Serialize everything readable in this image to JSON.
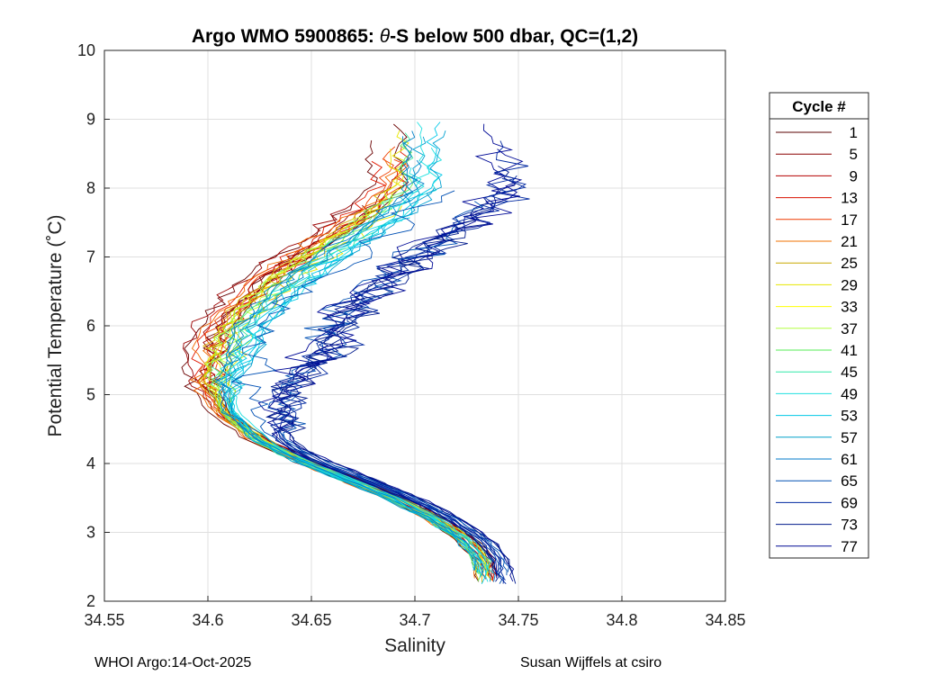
{
  "chart_data": {
    "type": "line",
    "title_prefix": "Argo WMO 5900865: ",
    "title_theta": "θ",
    "title_suffix": "-S below 500 dbar,  QC=(1,2)",
    "xlabel": "Salinity",
    "ylabel": "Potential Temperature (˚C)",
    "xlim": [
      34.55,
      34.85
    ],
    "ylim": [
      2,
      10
    ],
    "xticks": [
      "34.55",
      "34.6",
      "34.65",
      "34.7",
      "34.75",
      "34.8",
      "34.85"
    ],
    "yticks": [
      "2",
      "3",
      "4",
      "5",
      "6",
      "7",
      "8",
      "9",
      "10"
    ],
    "grid": true,
    "legend": {
      "title": "Cycle #",
      "placement": "outside-right",
      "entries": [
        {
          "label": "1",
          "color": "#5a0000"
        },
        {
          "label": "5",
          "color": "#8a0000"
        },
        {
          "label": "9",
          "color": "#b40000"
        },
        {
          "label": "13",
          "color": "#d81000"
        },
        {
          "label": "17",
          "color": "#ef3a00"
        },
        {
          "label": "21",
          "color": "#f07000"
        },
        {
          "label": "25",
          "color": "#c8a800"
        },
        {
          "label": "29",
          "color": "#e6e600"
        },
        {
          "label": "33",
          "color": "#ffff00"
        },
        {
          "label": "37",
          "color": "#b4ff40"
        },
        {
          "label": "41",
          "color": "#55ee55"
        },
        {
          "label": "45",
          "color": "#30e8a8"
        },
        {
          "label": "49",
          "color": "#20e0e0"
        },
        {
          "label": "53",
          "color": "#00c8e6"
        },
        {
          "label": "57",
          "color": "#00a0c8"
        },
        {
          "label": "61",
          "color": "#0078c8"
        },
        {
          "label": "65",
          "color": "#0050b4"
        },
        {
          "label": "69",
          "color": "#0028a0"
        },
        {
          "label": "73",
          "color": "#001a8c"
        },
        {
          "label": "77",
          "color": "#000a96"
        }
      ]
    },
    "mean_profile": [
      [
        34.735,
        2.3
      ],
      [
        34.733,
        2.6
      ],
      [
        34.725,
        2.9
      ],
      [
        34.71,
        3.2
      ],
      [
        34.69,
        3.5
      ],
      [
        34.67,
        3.75
      ],
      [
        34.645,
        4.05
      ],
      [
        34.625,
        4.35
      ],
      [
        34.61,
        4.75
      ],
      [
        34.607,
        5.2
      ],
      [
        34.612,
        5.6
      ],
      [
        34.617,
        6.0
      ],
      [
        34.63,
        6.4
      ],
      [
        34.645,
        6.8
      ],
      [
        34.665,
        7.2
      ],
      [
        34.685,
        7.6
      ],
      [
        34.7,
        8.0
      ]
    ],
    "series_groups": [
      {
        "name": "cycles 1-21 (red)",
        "colors": [
          "#6a0000",
          "#9a0000",
          "#c00000",
          "#e01800",
          "#f04000",
          "#f06800"
        ],
        "offset": -0.015,
        "count": 14
      },
      {
        "name": "cycles 25-45 (yellow-green)",
        "colors": [
          "#d8b000",
          "#e8e800",
          "#c8ff30",
          "#70f060",
          "#40e8a0"
        ],
        "offset": -0.003,
        "count": 12
      },
      {
        "name": "cycles 49-61 (cyan)",
        "colors": [
          "#20e0e0",
          "#00c8e8",
          "#00a0d0",
          "#0080c8"
        ],
        "offset": 0.004,
        "count": 12
      },
      {
        "name": "cycles 65-77 (blue)",
        "colors": [
          "#0050b4",
          "#0028a0",
          "#001a8c",
          "#000a96"
        ],
        "offset": 0.025,
        "count": 12
      }
    ]
  },
  "footer": {
    "left": "WHOI Argo:14-Oct-2025",
    "right": "Susan Wijffels at csiro"
  }
}
